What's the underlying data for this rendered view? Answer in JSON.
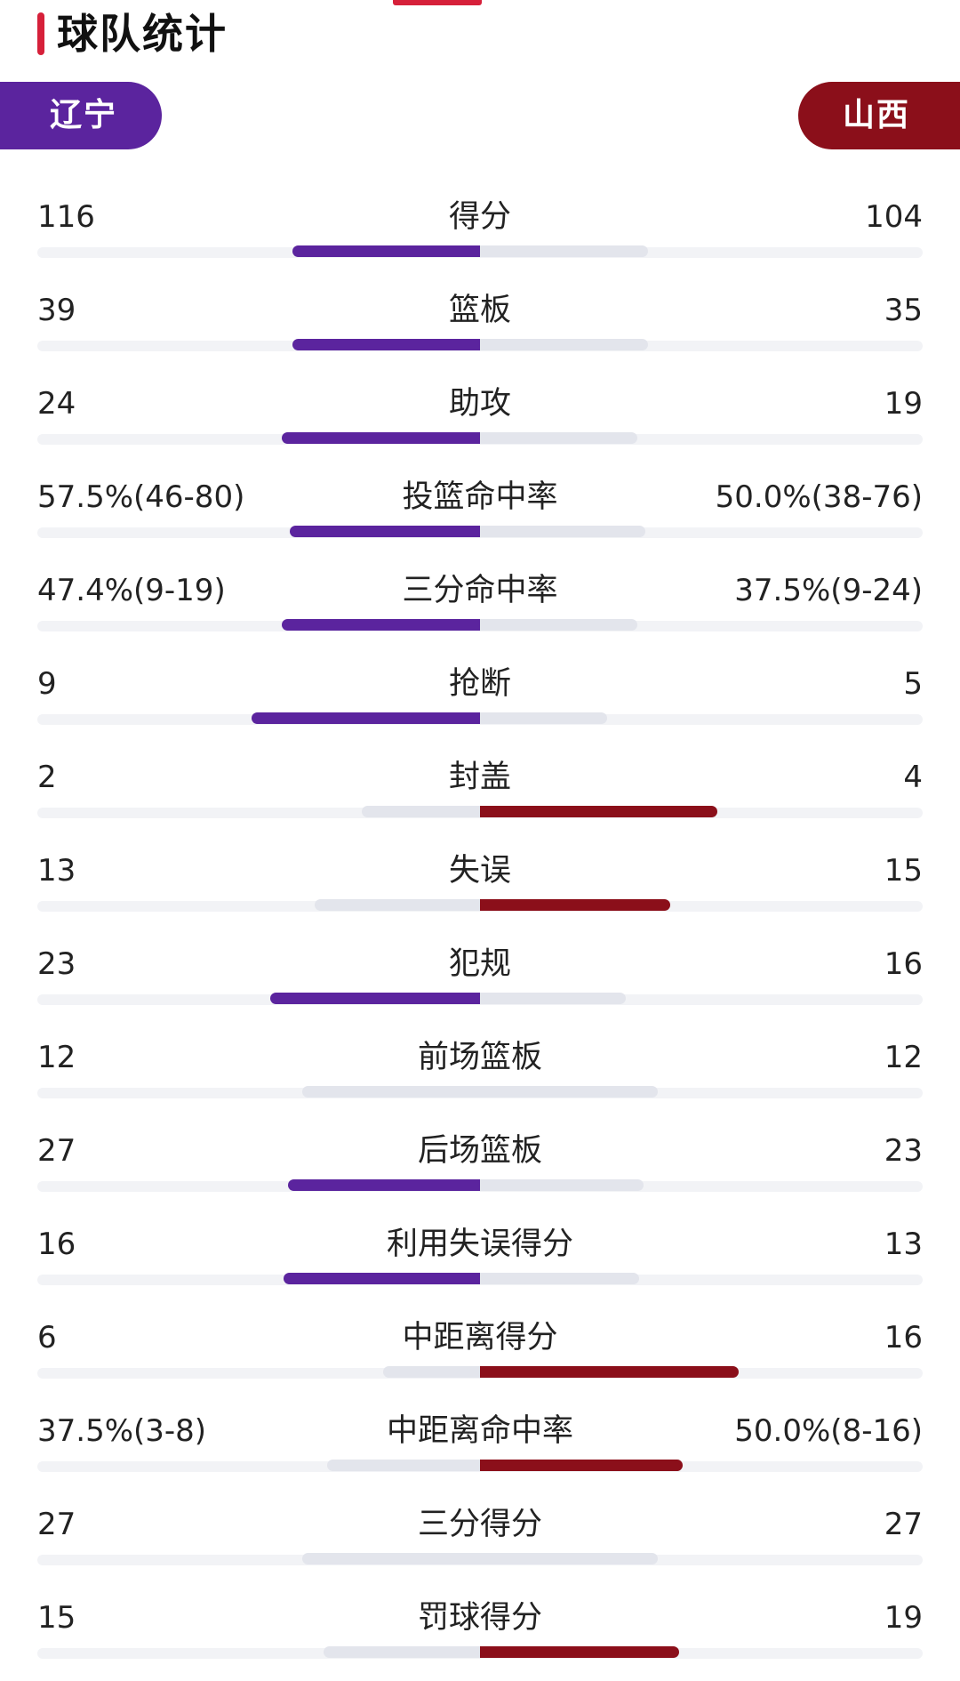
{
  "header": {
    "title": "球队统计"
  },
  "teams": {
    "left": {
      "name": "辽宁",
      "color": "#5b249e"
    },
    "right": {
      "name": "山西",
      "color": "#8b0f1a"
    }
  },
  "colors": {
    "accent": "#d6203a",
    "track": "#f2f3f6",
    "neutral_bar": "#e3e5ec"
  },
  "stats": [
    {
      "label": "得分",
      "left": "116",
      "right": "104",
      "left_share": 0.527
    },
    {
      "label": "篮板",
      "left": "39",
      "right": "35",
      "left_share": 0.527
    },
    {
      "label": "助攻",
      "left": "24",
      "right": "19",
      "left_share": 0.558
    },
    {
      "label": "投篮命中率",
      "left": "57.5%(46-80)",
      "right": "50.0%(38-76)",
      "left_share": 0.535
    },
    {
      "label": "三分命中率",
      "left": "47.4%(9-19)",
      "right": "37.5%(9-24)",
      "left_share": 0.558
    },
    {
      "label": "抢断",
      "left": "9",
      "right": "5",
      "left_share": 0.643
    },
    {
      "label": "封盖",
      "left": "2",
      "right": "4",
      "left_share": 0.333
    },
    {
      "label": "失误",
      "left": "13",
      "right": "15",
      "left_share": 0.464
    },
    {
      "label": "犯规",
      "left": "23",
      "right": "16",
      "left_share": 0.59
    },
    {
      "label": "前场篮板",
      "left": "12",
      "right": "12",
      "left_share": 0.5
    },
    {
      "label": "后场篮板",
      "left": "27",
      "right": "23",
      "left_share": 0.54
    },
    {
      "label": "利用失误得分",
      "left": "16",
      "right": "13",
      "left_share": 0.552
    },
    {
      "label": "中距离得分",
      "left": "6",
      "right": "16",
      "left_share": 0.273
    },
    {
      "label": "中距离命中率",
      "left": "37.5%(3-8)",
      "right": "50.0%(8-16)",
      "left_share": 0.429
    },
    {
      "label": "三分得分",
      "left": "27",
      "right": "27",
      "left_share": 0.5
    },
    {
      "label": "罚球得分",
      "left": "15",
      "right": "19",
      "left_share": 0.441
    }
  ]
}
